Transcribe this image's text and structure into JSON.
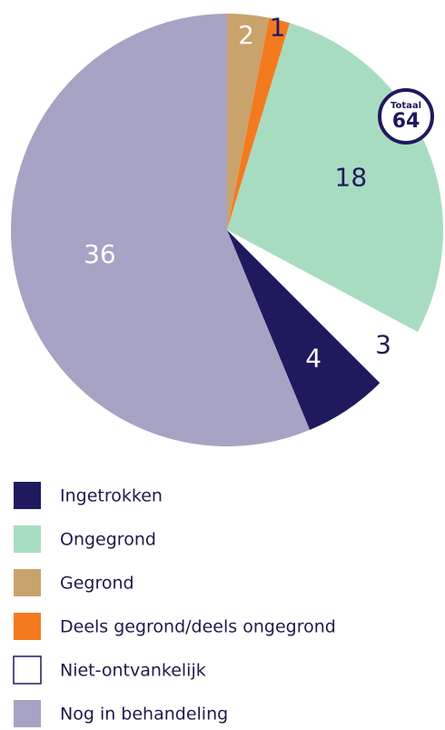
{
  "chart_data": {
    "type": "pie",
    "categories": [
      "Ingetrokken",
      "Ongegrond",
      "Gegrond",
      "Deels gegrond/deels ongegrond",
      "Niet-ontvankelijk",
      "Nog in behandeling"
    ],
    "values": [
      4,
      18,
      2,
      1,
      3,
      36
    ],
    "colors": [
      "#1f1a5e",
      "#a8dcc0",
      "#c9a36c",
      "#f47a20",
      "#ffffff",
      "#a6a3c4"
    ],
    "total": {
      "label": "Totaal",
      "value": 64
    }
  }
}
